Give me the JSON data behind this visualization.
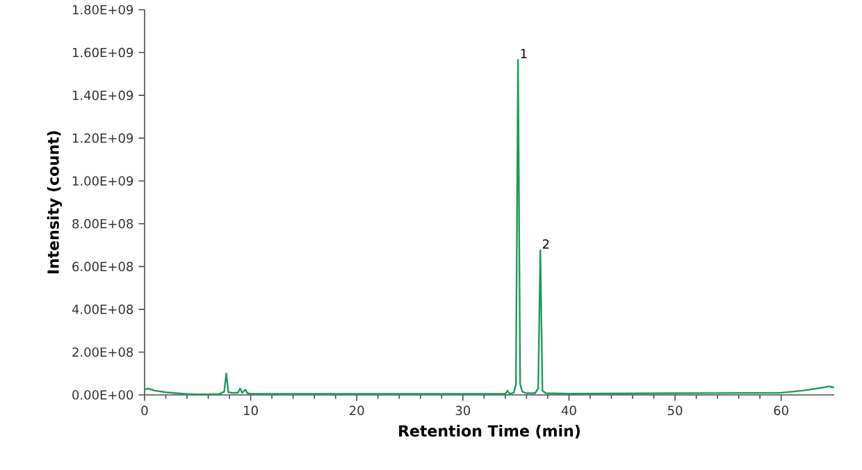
{
  "chart_data": {
    "type": "line",
    "xlabel": "Retention Time (min)",
    "ylabel": "Intensity (count)",
    "x": [
      0,
      0.3,
      1,
      2,
      3,
      4,
      5,
      7,
      7.3,
      7.5,
      7.7,
      7.9,
      8.2,
      8.8,
      9.0,
      9.2,
      9.5,
      9.7,
      10,
      20,
      30,
      34,
      34.2,
      34.4,
      34.8,
      35.0,
      35.2,
      35.4,
      35.6,
      36,
      36.8,
      37.1,
      37.3,
      37.5,
      37.8,
      40,
      50,
      60,
      62,
      64,
      64.5,
      65
    ],
    "series": [
      {
        "color": "#1e9a5a",
        "values": [
          25000000,
          30000000,
          20000000,
          12000000,
          8000000,
          4000000,
          3000000,
          3000000,
          10000000,
          15000000,
          100000000,
          12000000,
          10000000,
          10000000,
          30000000,
          10000000,
          25000000,
          8000000,
          5000000,
          5000000,
          5000000,
          5000000,
          20000000,
          5000000,
          10000000,
          50000000,
          1566000000,
          50000000,
          15000000,
          8000000,
          8000000,
          30000000,
          676000000,
          20000000,
          8000000,
          6000000,
          8000000,
          10000000,
          20000000,
          35000000,
          40000000,
          35000000
        ]
      }
    ],
    "annotations": [
      {
        "text": "1",
        "x": 35.2,
        "y": 1566000000
      },
      {
        "text": "2",
        "x": 37.3,
        "y": 676000000
      }
    ],
    "xlim": [
      0,
      65
    ],
    "xticks": [
      0,
      10,
      20,
      30,
      40,
      50,
      60
    ],
    "ylim": [
      0,
      1800000000
    ],
    "yticks": [
      {
        "value": 0,
        "label": "0.00E+00"
      },
      {
        "value": 200000000,
        "label": "2.00E+08"
      },
      {
        "value": 400000000,
        "label": "4.00E+08"
      },
      {
        "value": 600000000,
        "label": "6.00E+08"
      },
      {
        "value": 800000000,
        "label": "8.00E+08"
      },
      {
        "value": 1000000000,
        "label": "1.00E+09"
      },
      {
        "value": 1200000000,
        "label": "1.20E+09"
      },
      {
        "value": 1400000000,
        "label": "1.40E+09"
      },
      {
        "value": 1600000000,
        "label": "1.60E+09"
      },
      {
        "value": 1800000000,
        "label": "1.80E+09"
      }
    ],
    "grid": false,
    "marker": "none",
    "line_style": "solid"
  }
}
